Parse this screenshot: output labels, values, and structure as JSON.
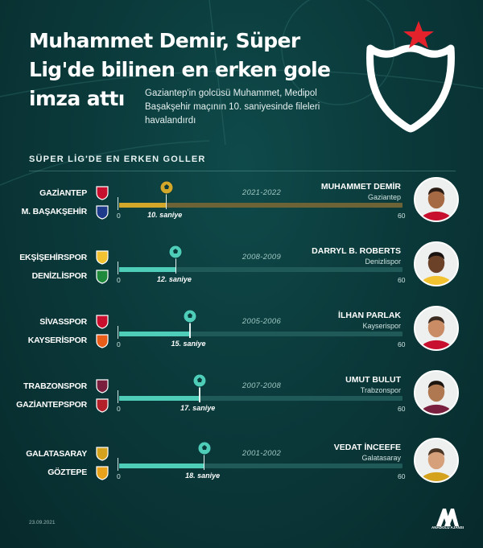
{
  "header": {
    "title": "Muhammet Demir, Süper Lig'de bilinen en erken gole imza attı",
    "subtitle": "Gaziantep'in golcüsü Muhammet, Medipol Başakşehir maçının 10. saniyesinde fileleri havalandırdı"
  },
  "section_title": "SÜPER LİG'DE EN ERKEN GOLLER",
  "axis": {
    "min_label": "0",
    "max_label": "60",
    "max_seconds": 60
  },
  "rows": [
    {
      "team1": "GAZİANTEP",
      "team2": "M. BAŞAKŞEHİR",
      "season": "2021-2022",
      "seconds": 10,
      "time_label": "10. saniye",
      "player": "MUHAMMET DEMİR",
      "player_club": "Gaziantep"
    },
    {
      "team1": "EKŞİŞEHİRSPOR",
      "team2": "DENİZLİSPOR",
      "season": "2008-2009",
      "seconds": 12,
      "time_label": "12. saniye",
      "player": "DARRYL B. ROBERTS",
      "player_club": "Denizlispor"
    },
    {
      "team1": "SİVASSPOR",
      "team2": "KAYSERİSPOR",
      "season": "2005-2006",
      "seconds": 15,
      "time_label": "15. saniye",
      "player": "İLHAN PARLAK",
      "player_club": "Kayserispor"
    },
    {
      "team1": "TRABZONSPOR",
      "team2": "GAZİANTEPSPOR",
      "season": "2007-2008",
      "seconds": 17,
      "time_label": "17. saniye",
      "player": "UMUT BULUT",
      "player_club": "Trabzonspor"
    },
    {
      "team1": "GALATASARAY",
      "team2": "GÖZTEPE",
      "season": "2001-2002",
      "seconds": 18,
      "time_label": "18. saniye",
      "player": "VEDAT İNCEEFE",
      "player_club": "Galatasaray"
    }
  ],
  "footer": {
    "date": "23.09.2021",
    "logo_text": "ANADOLU AJANSI"
  },
  "colors": {
    "accent_gold": "#d2a72a",
    "accent_teal": "#4ecdb9",
    "background": "#0b3a3b",
    "star_red": "#e3222b"
  },
  "icons": [
    "super-lig-trophy-logo",
    "soccer-ball-icon",
    "team-badge-icon",
    "player-photo",
    "aa-logo"
  ]
}
